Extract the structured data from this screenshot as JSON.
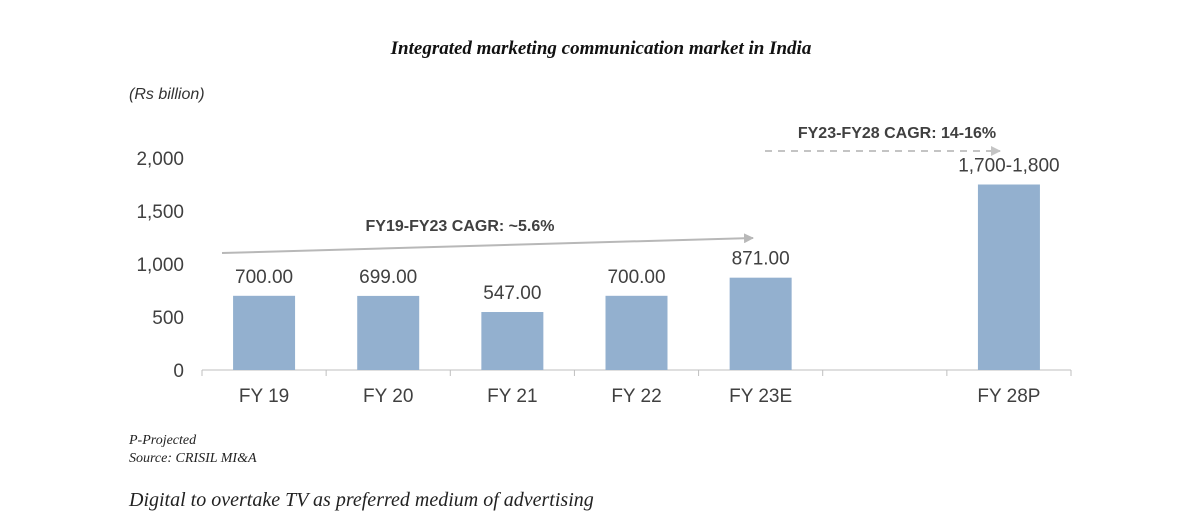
{
  "chart_data": {
    "type": "bar",
    "title": "Integrated marketing communication market in India",
    "unit_label": "(Rs billion)",
    "categories": [
      "FY 19",
      "FY 20",
      "FY 21",
      "FY 22",
      "FY 23E",
      "",
      "FY 28P"
    ],
    "values": [
      700,
      699,
      547,
      700,
      871,
      null,
      1750
    ],
    "data_labels": [
      "700.00",
      "699.00",
      "547.00",
      "700.00",
      "871.00",
      "",
      "1,700-1,800"
    ],
    "ylim": [
      0,
      2000
    ],
    "yticks": [
      0,
      500,
      1000,
      1500,
      2000
    ],
    "ytick_labels": [
      "0",
      "500",
      "1,000",
      "1,500",
      "2,000"
    ],
    "bar_color": "#93b0cf",
    "grid": false,
    "annotations": [
      {
        "text": "FY19-FY23 CAGR: ~5.6%",
        "style": "solid-arrow",
        "from_category": "FY 19",
        "to_category": "FY 23E"
      },
      {
        "text": "FY23-FY28 CAGR: 14-16%",
        "style": "dashed-arrow",
        "from_category": "",
        "to_category": "FY 28P"
      }
    ]
  },
  "notes": {
    "projected": "P-Projected",
    "source": "Source: CRISIL MI&A"
  },
  "following_heading": "Digital to overtake TV as preferred medium of advertising"
}
